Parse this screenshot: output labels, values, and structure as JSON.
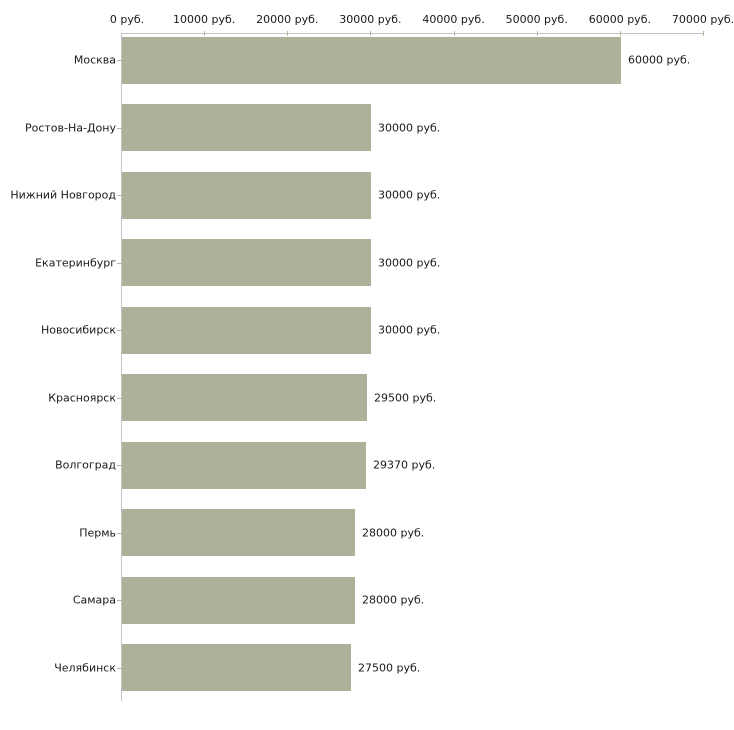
{
  "chart_data": {
    "type": "bar",
    "orientation": "horizontal",
    "title": "",
    "categories": [
      "Москва",
      "Ростов-На-Дону",
      "Нижний Новгород",
      "Екатеринбург",
      "Новосибирск",
      "Красноярск",
      "Волгоград",
      "Пермь",
      "Самара",
      "Челябинск"
    ],
    "values": [
      60000,
      30000,
      30000,
      30000,
      30000,
      29500,
      29370,
      28000,
      28000,
      27500
    ],
    "value_labels": [
      "60000 руб.",
      "30000 руб.",
      "30000 руб.",
      "30000 руб.",
      "30000 руб.",
      "29500 руб.",
      "29370 руб.",
      "28000 руб.",
      "28000 руб.",
      "27500 руб."
    ],
    "unit": "руб.",
    "x_axis": {
      "position": "top",
      "min": 0,
      "max": 70000,
      "ticks": [
        0,
        10000,
        20000,
        30000,
        40000,
        50000,
        60000,
        70000
      ],
      "tick_labels": [
        "0 руб.",
        "10000 руб.",
        "20000 руб.",
        "30000 руб.",
        "40000 руб.",
        "50000 руб.",
        "60000 руб.",
        "70000 руб."
      ]
    },
    "grid": false,
    "legend": false,
    "colors": {
      "bar": "#acb299",
      "axis_line": "#c3c3c3",
      "tick_mark": "#b8b898",
      "text": "#1a1a1a",
      "background": "#ffffff"
    }
  }
}
